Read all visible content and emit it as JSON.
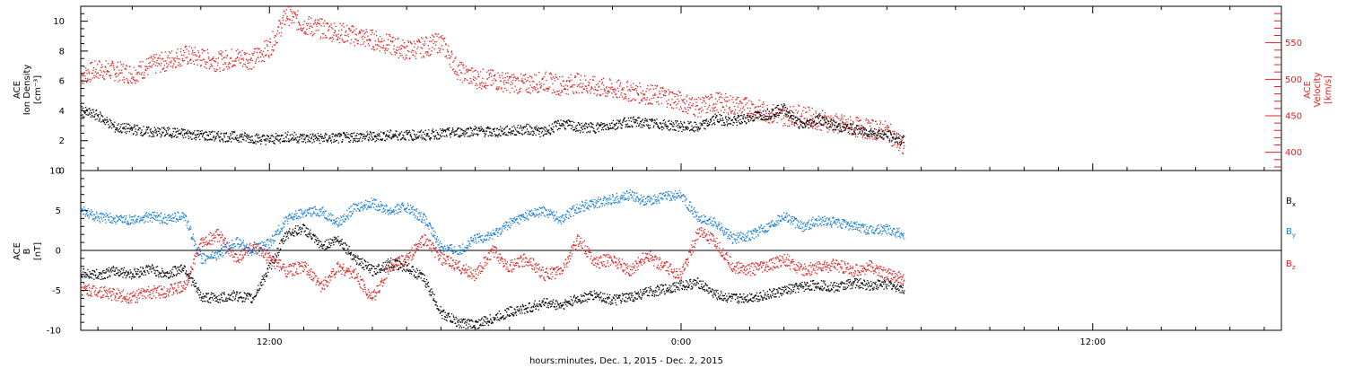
{
  "chart_data": [
    {
      "type": "scatter",
      "panel": "top",
      "ylabel_lines": [
        "ACE",
        "Ion Density",
        "[cm⁻³]"
      ],
      "ylabel_right_lines": [
        "ACE",
        "Velocity",
        "[km/s]"
      ],
      "x_range_hours": [
        6.5,
        30.5
      ],
      "ylim_left": [
        0,
        11
      ],
      "yticks_left": [
        0,
        2,
        4,
        6,
        8,
        10
      ],
      "ylim_right": [
        375,
        600
      ],
      "yticks_right": [
        400,
        450,
        500,
        550
      ],
      "series": [
        {
          "name": "",
          "axis": "left",
          "color": "#000000",
          "values": [
            [
              6.5,
              4.0
            ],
            [
              7.0,
              3.7
            ],
            [
              7.5,
              2.9
            ],
            [
              8.0,
              2.8
            ],
            [
              8.5,
              2.6
            ],
            [
              9.0,
              2.6
            ],
            [
              9.5,
              2.5
            ],
            [
              10.0,
              2.4
            ],
            [
              10.5,
              2.3
            ],
            [
              11.0,
              2.3
            ],
            [
              11.5,
              2.2
            ],
            [
              12.0,
              2.1
            ],
            [
              12.5,
              2.3
            ],
            [
              13.0,
              2.2
            ],
            [
              13.5,
              2.2
            ],
            [
              14.0,
              2.2
            ],
            [
              14.5,
              2.3
            ],
            [
              15.0,
              2.3
            ],
            [
              15.5,
              2.4
            ],
            [
              16.0,
              2.4
            ],
            [
              16.5,
              2.4
            ],
            [
              17.0,
              2.5
            ],
            [
              17.5,
              2.6
            ],
            [
              18.0,
              2.7
            ],
            [
              18.5,
              2.6
            ],
            [
              19.0,
              2.7
            ],
            [
              19.5,
              2.8
            ],
            [
              20.0,
              2.6
            ],
            [
              20.5,
              3.2
            ],
            [
              21.0,
              2.9
            ],
            [
              21.5,
              2.9
            ],
            [
              22.0,
              3.1
            ],
            [
              22.5,
              3.3
            ],
            [
              23.0,
              3.2
            ],
            [
              23.5,
              3.1
            ],
            [
              24.0,
              3.0
            ],
            [
              24.5,
              2.9
            ],
            [
              25.0,
              3.5
            ],
            [
              25.5,
              3.3
            ],
            [
              26.0,
              3.6
            ],
            [
              26.5,
              3.8
            ],
            [
              27.0,
              4.2
            ],
            [
              27.5,
              3.0
            ],
            [
              28.0,
              3.5
            ],
            [
              28.5,
              3.0
            ],
            [
              29.0,
              2.8
            ],
            [
              29.5,
              2.6
            ],
            [
              30.0,
              2.4
            ],
            [
              30.5,
              2.0
            ]
          ]
        },
        {
          "name": "",
          "axis": "right",
          "color": "#e02020",
          "values": [
            [
              6.5,
              506
            ],
            [
              7.0,
              514
            ],
            [
              7.5,
              512
            ],
            [
              8.0,
              508
            ],
            [
              8.5,
              519
            ],
            [
              9.0,
              526
            ],
            [
              9.5,
              534
            ],
            [
              10.0,
              530
            ],
            [
              10.5,
              525
            ],
            [
              11.0,
              531
            ],
            [
              11.5,
              528
            ],
            [
              12.0,
              545
            ],
            [
              12.5,
              590
            ],
            [
              13.0,
              575
            ],
            [
              13.5,
              570
            ],
            [
              14.0,
              565
            ],
            [
              14.5,
              560
            ],
            [
              15.0,
              555
            ],
            [
              15.5,
              548
            ],
            [
              16.0,
              540
            ],
            [
              16.5,
              545
            ],
            [
              17.0,
              552
            ],
            [
              17.5,
              512
            ],
            [
              18.0,
              502
            ],
            [
              18.5,
              500
            ],
            [
              19.0,
              496
            ],
            [
              19.5,
              494
            ],
            [
              20.0,
              498
            ],
            [
              20.5,
              492
            ],
            [
              21.0,
              496
            ],
            [
              21.5,
              490
            ],
            [
              22.0,
              487
            ],
            [
              22.5,
              484
            ],
            [
              23.0,
              480
            ],
            [
              23.5,
              478
            ],
            [
              24.0,
              470
            ],
            [
              24.5,
              462
            ],
            [
              25.0,
              470
            ],
            [
              25.5,
              465
            ],
            [
              26.0,
              462
            ],
            [
              26.5,
              455
            ],
            [
              27.0,
              450
            ],
            [
              27.5,
              452
            ],
            [
              28.0,
              445
            ],
            [
              28.5,
              440
            ],
            [
              29.0,
              436
            ],
            [
              29.5,
              432
            ],
            [
              30.0,
              430
            ],
            [
              30.5,
              405
            ]
          ]
        }
      ]
    },
    {
      "type": "scatter",
      "panel": "bottom",
      "ylabel_lines": [
        "ACE",
        "B",
        "[nT]"
      ],
      "x_range_hours": [
        6.5,
        30.5
      ],
      "ylim": [
        -10,
        10
      ],
      "yticks": [
        -10,
        -5,
        0,
        5,
        10
      ],
      "xtick_labels": [
        {
          "hour": 12,
          "label": "12:00"
        },
        {
          "hour": 24,
          "label": "0:00"
        },
        {
          "hour": 36,
          "label": "12:00"
        }
      ],
      "xlabel": "hours:minutes, Dec.  1, 2015 - Dec.  2, 2015",
      "series": [
        {
          "name": "B",
          "subscript": "x",
          "color": "#000000",
          "values": [
            [
              6.5,
              -2.8
            ],
            [
              7.0,
              -3.0
            ],
            [
              7.5,
              -2.5
            ],
            [
              8.0,
              -2.9
            ],
            [
              8.5,
              -2.2
            ],
            [
              9.0,
              -3.0
            ],
            [
              9.5,
              -2.0
            ],
            [
              10.0,
              -5.8
            ],
            [
              10.5,
              -5.9
            ],
            [
              11.0,
              -5.6
            ],
            [
              11.5,
              -6.0
            ],
            [
              12.0,
              -2.0
            ],
            [
              12.5,
              2.2
            ],
            [
              13.0,
              2.8
            ],
            [
              13.5,
              0.5
            ],
            [
              14.0,
              1.5
            ],
            [
              14.5,
              -1.0
            ],
            [
              15.0,
              -2.5
            ],
            [
              15.5,
              -1.5
            ],
            [
              16.0,
              -2.0
            ],
            [
              16.5,
              -3.5
            ],
            [
              17.0,
              -7.8
            ],
            [
              17.5,
              -9.0
            ],
            [
              18.0,
              -9.2
            ],
            [
              18.5,
              -8.5
            ],
            [
              19.0,
              -7.6
            ],
            [
              19.5,
              -7.2
            ],
            [
              20.0,
              -6.5
            ],
            [
              20.5,
              -6.8
            ],
            [
              21.0,
              -6.0
            ],
            [
              21.5,
              -5.5
            ],
            [
              22.0,
              -6.2
            ],
            [
              22.5,
              -5.8
            ],
            [
              23.0,
              -5.2
            ],
            [
              23.5,
              -4.8
            ],
            [
              24.0,
              -4.3
            ],
            [
              24.5,
              -4.0
            ],
            [
              25.0,
              -5.5
            ],
            [
              25.5,
              -6.0
            ],
            [
              26.0,
              -5.8
            ],
            [
              26.5,
              -5.5
            ],
            [
              27.0,
              -5.0
            ],
            [
              27.5,
              -4.5
            ],
            [
              28.0,
              -4.2
            ],
            [
              28.5,
              -4.6
            ],
            [
              29.0,
              -4.0
            ],
            [
              29.5,
              -4.3
            ],
            [
              30.0,
              -4.1
            ],
            [
              30.5,
              -4.8
            ]
          ]
        },
        {
          "name": "B",
          "subscript": "y",
          "color": "#1a7fd4",
          "values": [
            [
              6.5,
              5.0
            ],
            [
              7.0,
              4.2
            ],
            [
              7.5,
              4.0
            ],
            [
              8.0,
              3.8
            ],
            [
              8.5,
              4.3
            ],
            [
              9.0,
              4.0
            ],
            [
              9.5,
              4.4
            ],
            [
              10.0,
              -1.0
            ],
            [
              10.5,
              -0.5
            ],
            [
              11.0,
              1.2
            ],
            [
              11.5,
              0.0
            ],
            [
              12.0,
              1.0
            ],
            [
              12.5,
              4.0
            ],
            [
              13.0,
              4.8
            ],
            [
              13.5,
              5.0
            ],
            [
              14.0,
              3.5
            ],
            [
              14.5,
              5.5
            ],
            [
              15.0,
              6.0
            ],
            [
              15.5,
              5.0
            ],
            [
              16.0,
              5.5
            ],
            [
              16.5,
              4.0
            ],
            [
              17.0,
              0.5
            ],
            [
              17.5,
              0.0
            ],
            [
              18.0,
              1.5
            ],
            [
              18.5,
              2.0
            ],
            [
              19.0,
              3.5
            ],
            [
              19.5,
              4.5
            ],
            [
              20.0,
              5.0
            ],
            [
              20.5,
              4.0
            ],
            [
              21.0,
              5.5
            ],
            [
              21.5,
              6.0
            ],
            [
              22.0,
              6.5
            ],
            [
              22.5,
              7.0
            ],
            [
              23.0,
              6.2
            ],
            [
              23.5,
              6.8
            ],
            [
              24.0,
              7.0
            ],
            [
              24.5,
              4.0
            ],
            [
              25.0,
              3.5
            ],
            [
              25.5,
              1.5
            ],
            [
              26.0,
              2.0
            ],
            [
              26.5,
              3.0
            ],
            [
              27.0,
              4.5
            ],
            [
              27.5,
              3.0
            ],
            [
              28.0,
              3.8
            ],
            [
              28.5,
              3.5
            ],
            [
              29.0,
              3.2
            ],
            [
              29.5,
              2.5
            ],
            [
              30.0,
              2.8
            ],
            [
              30.5,
              2.0
            ]
          ]
        },
        {
          "name": "B",
          "subscript": "z",
          "color": "#e02020",
          "values": [
            [
              6.5,
              -4.8
            ],
            [
              7.0,
              -5.0
            ],
            [
              7.5,
              -5.5
            ],
            [
              8.0,
              -5.8
            ],
            [
              8.5,
              -5.2
            ],
            [
              9.0,
              -5.0
            ],
            [
              9.5,
              -4.5
            ],
            [
              10.0,
              1.0
            ],
            [
              10.5,
              2.0
            ],
            [
              11.0,
              -1.0
            ],
            [
              11.5,
              0.5
            ],
            [
              12.0,
              -1.0
            ],
            [
              12.5,
              -2.5
            ],
            [
              13.0,
              -2.0
            ],
            [
              13.5,
              -4.5
            ],
            [
              14.0,
              -2.0
            ],
            [
              14.5,
              -3.0
            ],
            [
              15.0,
              -6.0
            ],
            [
              15.5,
              -2.0
            ],
            [
              16.0,
              -1.0
            ],
            [
              16.5,
              1.5
            ],
            [
              17.0,
              -1.0
            ],
            [
              17.5,
              -2.0
            ],
            [
              18.0,
              -3.0
            ],
            [
              18.5,
              0.0
            ],
            [
              19.0,
              -2.0
            ],
            [
              19.5,
              -1.0
            ],
            [
              20.0,
              -3.0
            ],
            [
              20.5,
              -2.5
            ],
            [
              21.0,
              1.5
            ],
            [
              21.5,
              -1.5
            ],
            [
              22.0,
              -1.0
            ],
            [
              22.5,
              -2.5
            ],
            [
              23.0,
              -0.5
            ],
            [
              23.5,
              -2.0
            ],
            [
              24.0,
              -3.0
            ],
            [
              24.5,
              2.5
            ],
            [
              25.0,
              1.0
            ],
            [
              25.5,
              -2.0
            ],
            [
              26.0,
              -2.3
            ],
            [
              26.5,
              -2.0
            ],
            [
              27.0,
              -1.0
            ],
            [
              27.5,
              -2.5
            ],
            [
              28.0,
              -2.0
            ],
            [
              28.5,
              -1.8
            ],
            [
              29.0,
              -2.5
            ],
            [
              29.5,
              -2.0
            ],
            [
              30.0,
              -3.0
            ],
            [
              30.5,
              -3.5
            ]
          ]
        }
      ]
    }
  ]
}
